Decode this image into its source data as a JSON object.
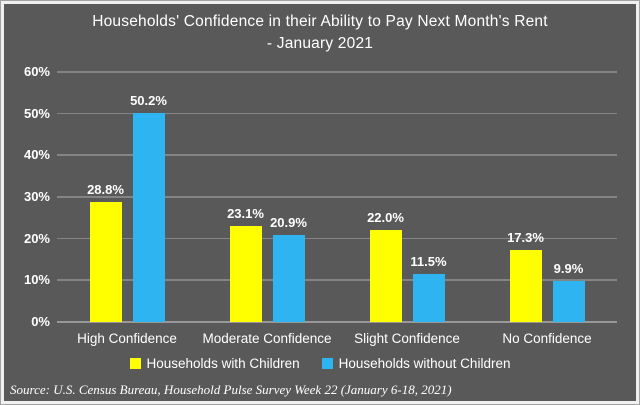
{
  "title": {
    "line1": "Households' Confidence in their Ability to Pay Next Month's Rent",
    "line2": "- January 2021"
  },
  "chart_data": {
    "type": "bar",
    "categories": [
      "High Confidence",
      "Moderate Confidence",
      "Slight Confidence",
      "No Confidence"
    ],
    "series": [
      {
        "name": "Households with Children",
        "color": "#FFFF00",
        "values": [
          28.8,
          23.1,
          22.0,
          17.3
        ]
      },
      {
        "name": "Households without Children",
        "color": "#2EB4F1",
        "values": [
          50.2,
          20.9,
          11.5,
          9.9
        ]
      }
    ],
    "value_suffix": "%",
    "ylim": [
      0,
      60
    ],
    "ytick_step": 10,
    "ytick_labels": [
      "0%",
      "10%",
      "20%",
      "30%",
      "40%",
      "50%",
      "60%"
    ],
    "grid": true,
    "legend_position": "bottom",
    "data_labels": true
  },
  "source": "Source: U.S. Census Bureau, Household Pulse Survey Week 22 (January 6-18, 2021)",
  "colors": {
    "background": "#595959",
    "gridline": "#848484",
    "axis_line": "#989898",
    "text": "#FFFFFF",
    "frame_fill": "#F0F0F0",
    "frame_border": "#A3A3A3",
    "bar_with_children": "#FFFF00",
    "bar_without_children": "#2EB4F1"
  }
}
